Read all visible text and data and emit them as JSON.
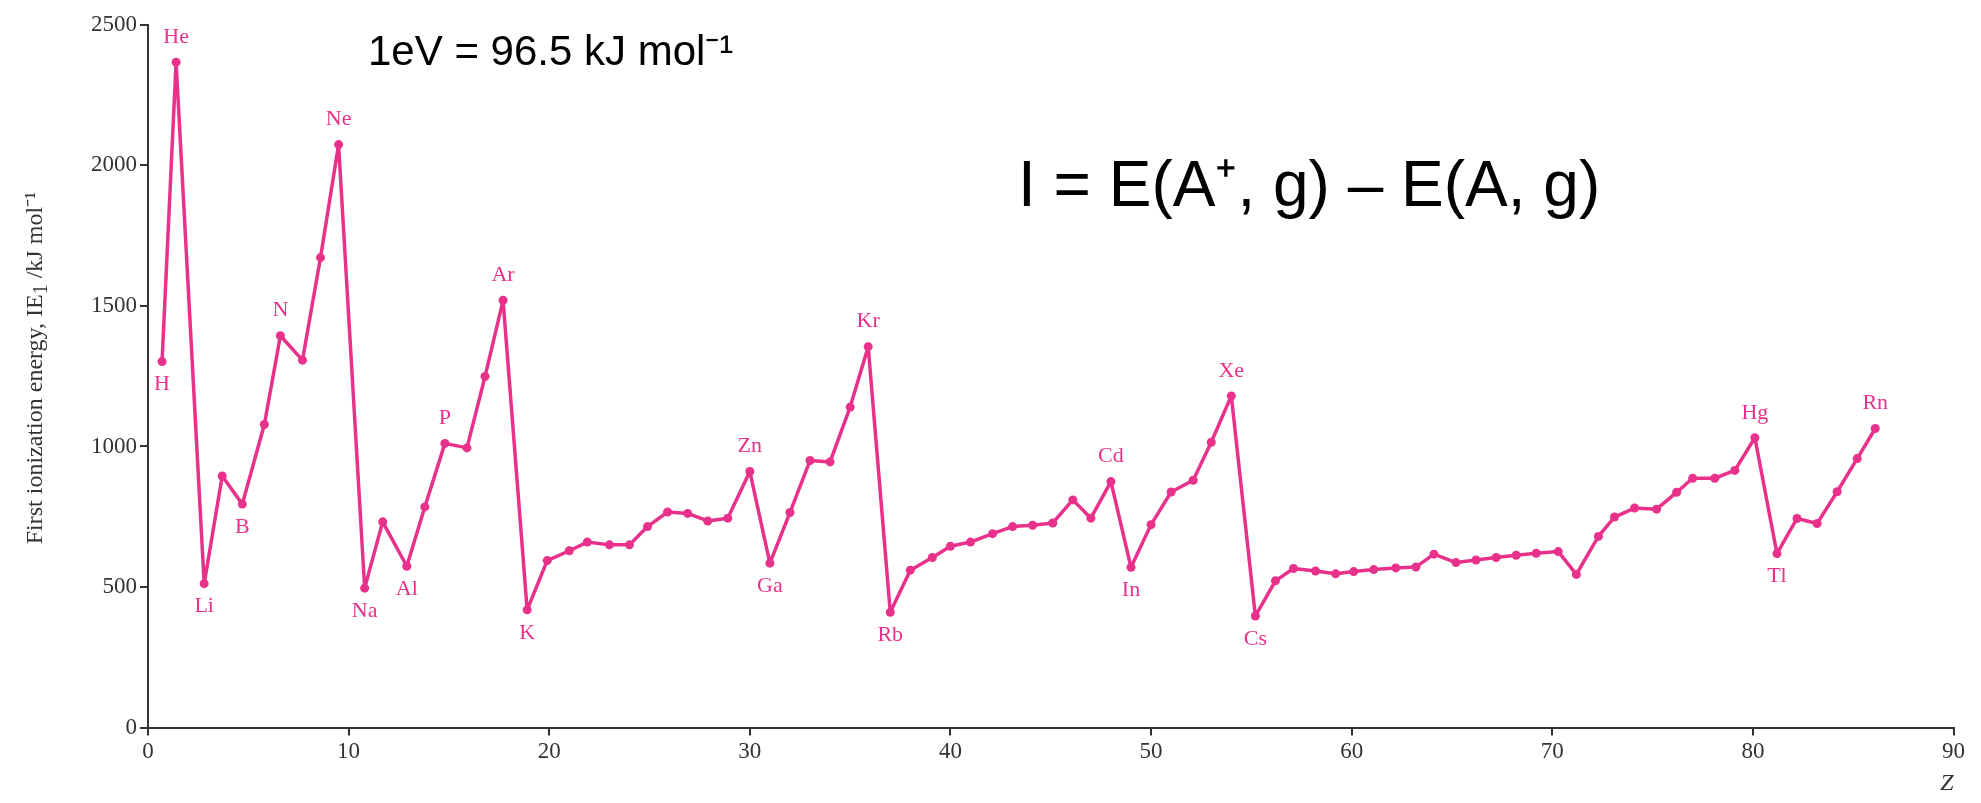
{
  "chart_data": {
    "type": "line",
    "xlabel": "Z",
    "ylabel": "First ionization energy, IE$_{1}$ /kJ mol⁻¹",
    "xlim": [
      0,
      90
    ],
    "xticks": [
      0,
      10,
      20,
      30,
      40,
      50,
      60,
      70,
      80,
      90
    ],
    "ylim": [
      0,
      2500
    ],
    "yticks": [
      0,
      500,
      1000,
      1500,
      2000,
      2500
    ],
    "grid": false,
    "legend": false,
    "marker": "circle",
    "line_style": "solid",
    "series": [
      {
        "color": "#e8318a",
        "x": [
          0.7,
          1.4,
          2.8,
          3.7,
          4.7,
          5.8,
          6.6,
          7.7,
          8.6,
          9.5,
          10.8,
          11.7,
          12.9,
          13.8,
          14.8,
          15.9,
          16.8,
          17.7,
          18.9,
          19.9,
          21.0,
          21.9,
          23.0,
          24.0,
          24.9,
          25.9,
          26.9,
          27.9,
          28.9,
          30.0,
          31.0,
          32.0,
          33.0,
          34.0,
          35.0,
          35.9,
          37.0,
          38.0,
          39.1,
          40.0,
          41.0,
          42.1,
          43.1,
          44.1,
          45.1,
          46.1,
          47.0,
          48.0,
          49.0,
          50.0,
          51.0,
          52.1,
          53.0,
          54.0,
          55.2,
          56.2,
          57.1,
          58.2,
          59.2,
          60.1,
          61.1,
          62.2,
          63.2,
          64.1,
          65.2,
          66.2,
          67.2,
          68.2,
          69.2,
          70.3,
          71.2,
          72.3,
          73.1,
          74.1,
          75.2,
          76.2,
          77.0,
          78.1,
          79.1,
          80.1,
          81.2,
          82.2,
          83.2,
          84.2,
          85.2,
          86.1
        ],
        "values": [
          1302,
          2367,
          512,
          895,
          795,
          1078,
          1394,
          1307,
          1672,
          2074,
          496,
          732,
          574,
          785,
          1011,
          995,
          1249,
          1520,
          419,
          594,
          629,
          660,
          650,
          650,
          715,
          767,
          762,
          735,
          745,
          911,
          585,
          765,
          950,
          945,
          1140,
          1355,
          410,
          560,
          605,
          645,
          660,
          690,
          715,
          720,
          728,
          810,
          745,
          875,
          570,
          722,
          838,
          880,
          1015,
          1180,
          397,
          522,
          566,
          557,
          547,
          555,
          562,
          568,
          571,
          617,
          587,
          596,
          605,
          613,
          620,
          626,
          545,
          680,
          749,
          781,
          777,
          837,
          887,
          887,
          915,
          1031,
          619,
          744,
          726,
          839,
          957,
          1064
        ]
      }
    ],
    "annotations": [
      "1eV = 96.5 kJ mol⁻¹",
      "I = E(A⁺, g) – E(A, g)",
      {
        "text": "H",
        "x": 0.7,
        "y": 1302
      },
      {
        "text": "He",
        "x": 1.4,
        "y": 2367
      },
      {
        "text": "Li",
        "x": 2.8,
        "y": 512
      },
      {
        "text": "B",
        "x": 4.7,
        "y": 795
      },
      {
        "text": "N",
        "x": 6.6,
        "y": 1394
      },
      {
        "text": "Ne",
        "x": 9.5,
        "y": 2074
      },
      {
        "text": "Na",
        "x": 10.8,
        "y": 496
      },
      {
        "text": "Al",
        "x": 12.9,
        "y": 574
      },
      {
        "text": "P",
        "x": 14.8,
        "y": 1011
      },
      {
        "text": "Ar",
        "x": 17.7,
        "y": 1520
      },
      {
        "text": "K",
        "x": 18.9,
        "y": 419
      },
      {
        "text": "Zn",
        "x": 30.0,
        "y": 911
      },
      {
        "text": "Ga",
        "x": 31.0,
        "y": 585
      },
      {
        "text": "Kr",
        "x": 35.9,
        "y": 1355
      },
      {
        "text": "Rb",
        "x": 37.0,
        "y": 410
      },
      {
        "text": "Cd",
        "x": 48.0,
        "y": 875
      },
      {
        "text": "In",
        "x": 49.0,
        "y": 570
      },
      {
        "text": "Xe",
        "x": 54.0,
        "y": 1180
      },
      {
        "text": "Cs",
        "x": 55.2,
        "y": 397
      },
      {
        "text": "Hg",
        "x": 80.1,
        "y": 1031
      },
      {
        "text": "Tl",
        "x": 81.2,
        "y": 619
      },
      {
        "text": "Rn",
        "x": 86.1,
        "y": 1064
      }
    ]
  }
}
